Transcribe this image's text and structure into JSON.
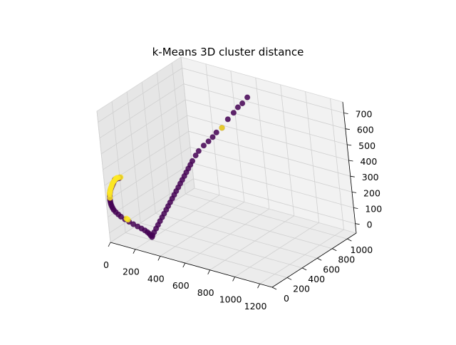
{
  "chart_data": {
    "type": "scatter",
    "projection": "3d",
    "title": "k-Means 3D cluster distance",
    "xlabel": "",
    "ylabel": "",
    "zlabel": "",
    "x_ticks": [
      "0",
      "200",
      "400",
      "600",
      "800",
      "1000",
      "1200"
    ],
    "y_ticks": [
      "0",
      "200",
      "400",
      "600",
      "800",
      "1000"
    ],
    "z_ticks": [
      "0",
      "100",
      "200",
      "300",
      "400",
      "500",
      "600",
      "700"
    ],
    "grid": true,
    "colors": {
      "cluster_0": "#440154",
      "cluster_1": "#fde725",
      "pane": "#f2f2f2",
      "grid": "#d0d0d0"
    },
    "series": [
      {
        "cluster": 0,
        "points": [
          [
            50,
            60,
            330
          ],
          [
            45,
            58,
            320
          ],
          [
            40,
            55,
            310
          ],
          [
            35,
            52,
            300
          ],
          [
            30,
            50,
            290
          ],
          [
            25,
            48,
            280
          ],
          [
            20,
            45,
            270
          ],
          [
            16,
            42,
            260
          ],
          [
            14,
            40,
            250
          ],
          [
            12,
            38,
            240
          ],
          [
            12,
            36,
            230
          ],
          [
            12,
            33,
            220
          ],
          [
            13,
            30,
            210
          ],
          [
            15,
            28,
            200
          ],
          [
            18,
            25,
            190
          ],
          [
            22,
            22,
            180
          ],
          [
            28,
            20,
            170
          ],
          [
            35,
            18,
            160
          ],
          [
            45,
            16,
            150
          ],
          [
            60,
            15,
            140
          ],
          [
            80,
            14,
            130
          ],
          [
            100,
            14,
            120
          ],
          [
            130,
            15,
            110
          ],
          [
            160,
            18,
            100
          ],
          [
            190,
            22,
            90
          ],
          [
            220,
            28,
            80
          ],
          [
            245,
            36,
            70
          ],
          [
            265,
            45,
            60
          ],
          [
            280,
            52,
            50
          ],
          [
            290,
            58,
            40
          ],
          [
            298,
            62,
            30
          ],
          [
            305,
            66,
            20
          ],
          [
            305,
            75,
            28
          ],
          [
            312,
            88,
            45
          ],
          [
            320,
            105,
            65
          ],
          [
            328,
            122,
            85
          ],
          [
            336,
            140,
            105
          ],
          [
            344,
            158,
            125
          ],
          [
            352,
            176,
            145
          ],
          [
            360,
            195,
            165
          ],
          [
            368,
            212,
            185
          ],
          [
            376,
            230,
            205
          ],
          [
            384,
            248,
            225
          ],
          [
            392,
            266,
            245
          ],
          [
            400,
            284,
            265
          ],
          [
            408,
            302,
            285
          ],
          [
            416,
            320,
            305
          ],
          [
            424,
            338,
            325
          ],
          [
            432,
            356,
            345
          ],
          [
            440,
            374,
            365
          ],
          [
            448,
            392,
            385
          ],
          [
            456,
            410,
            405
          ],
          [
            464,
            428,
            425
          ],
          [
            478,
            455,
            455
          ],
          [
            490,
            480,
            478
          ],
          [
            510,
            520,
            505
          ],
          [
            530,
            555,
            525
          ],
          [
            545,
            590,
            545
          ],
          [
            560,
            620,
            568
          ],
          [
            580,
            665,
            588
          ],
          [
            600,
            720,
            630
          ],
          [
            620,
            770,
            660
          ],
          [
            640,
            800,
            690
          ],
          [
            660,
            830,
            710
          ],
          [
            680,
            870,
            740
          ],
          [
            70,
            62,
            340
          ],
          [
            85,
            64,
            345
          ],
          [
            60,
            61,
            335
          ],
          [
            90,
            66,
            350
          ]
        ]
      },
      {
        "cluster": 1,
        "points": [
          [
            55,
            62,
            335
          ],
          [
            60,
            64,
            338
          ],
          [
            65,
            66,
            342
          ],
          [
            48,
            59,
            325
          ],
          [
            40,
            57,
            315
          ],
          [
            33,
            54,
            305
          ],
          [
            28,
            52,
            295
          ],
          [
            24,
            50,
            285
          ],
          [
            19,
            47,
            275
          ],
          [
            16,
            44,
            265
          ],
          [
            14,
            41,
            255
          ],
          [
            12,
            38,
            245
          ],
          [
            12,
            36,
            235
          ],
          [
            14,
            31,
            215
          ],
          [
            140,
            20,
            115
          ],
          [
            150,
            22,
            110
          ],
          [
            75,
            65,
            345
          ],
          [
            95,
            68,
            352
          ],
          [
            580,
            665,
            588
          ]
        ]
      }
    ]
  }
}
